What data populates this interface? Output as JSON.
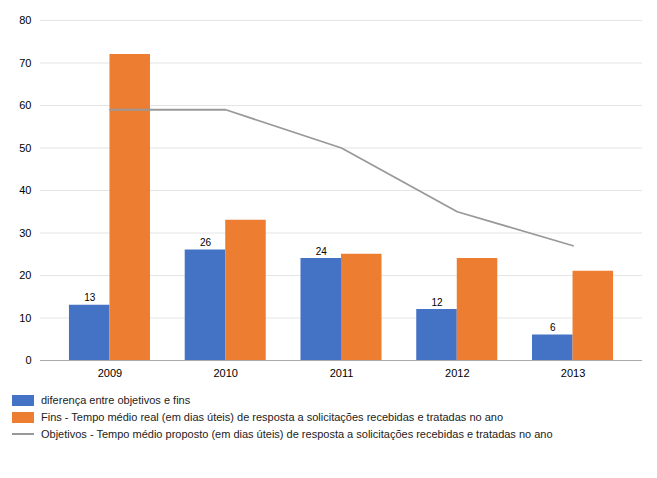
{
  "chart_data": {
    "type": "bar",
    "categories": [
      "2009",
      "2010",
      "2011",
      "2012",
      "2013"
    ],
    "series": [
      {
        "name": "diferença entre objetivos e fins",
        "type": "bar",
        "color": "#4472C4",
        "values": [
          13,
          26,
          24,
          12,
          6
        ],
        "data_labels": true
      },
      {
        "name": "Fins - Tempo médio real (em dias úteis) de resposta a solicitações recebidas e tratadas no ano",
        "type": "bar",
        "color": "#ED7D31",
        "values": [
          72,
          33,
          25,
          24,
          21
        ]
      },
      {
        "name": "Objetivos - Tempo médio proposto (em dias úteis) de resposta a solicitações recebidas e tratadas no ano",
        "type": "line",
        "color": "#999999",
        "values": [
          59,
          59,
          50,
          35,
          27
        ]
      }
    ],
    "ylim": [
      0,
      80
    ],
    "yticks": [
      0,
      10,
      20,
      30,
      40,
      50,
      60,
      70,
      80
    ],
    "grid": true,
    "legend": "lower left"
  }
}
